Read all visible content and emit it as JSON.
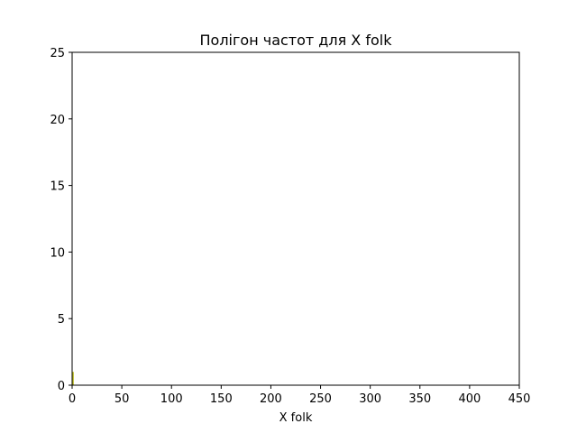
{
  "chart_data": {
    "type": "line",
    "title": "Полігон частот для X folk",
    "xlabel": "X folk",
    "ylabel": "",
    "xlim": [
      0,
      450
    ],
    "ylim": [
      0,
      25
    ],
    "xticks": [
      "0",
      "50",
      "100",
      "150",
      "200",
      "250",
      "300",
      "350",
      "400",
      "450"
    ],
    "yticks": [
      "0",
      "5",
      "10",
      "15",
      "20",
      "25"
    ],
    "grid": false,
    "series": [
      {
        "color": "#bcbd22",
        "x": [
          1,
          1,
          1
        ],
        "y": [
          0,
          1,
          1
        ]
      }
    ]
  }
}
